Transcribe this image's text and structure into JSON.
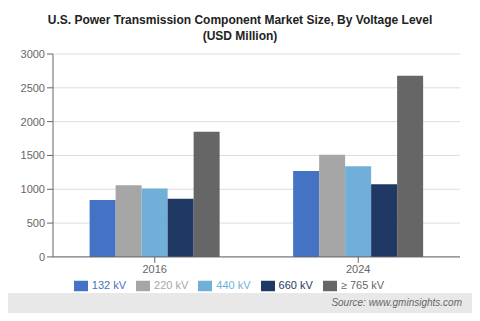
{
  "chart_data": {
    "type": "bar",
    "title": "U.S. Power Transmission Component Market Size, By Voltage Level",
    "subtitle": "(USD Million)",
    "annotations": [
      "Source: www.gminsights.com"
    ],
    "categories": [
      "2016",
      "2024"
    ],
    "series": [
      {
        "name": "132 kV",
        "color": "#4472c4",
        "values": [
          840,
          1270
        ]
      },
      {
        "name": "220 kV",
        "color": "#a6a6a6",
        "values": [
          1060,
          1510
        ]
      },
      {
        "name": "440 kV",
        "color": "#70b0d8",
        "values": [
          1010,
          1340
        ]
      },
      {
        "name": "660 kV",
        "color": "#1f3864",
        "values": [
          860,
          1075
        ]
      },
      {
        "name": "≥ 765 kV",
        "color": "#666666",
        "values": [
          1850,
          2680
        ]
      }
    ],
    "ylim": [
      0,
      3000
    ],
    "yticks": [
      0,
      500,
      1000,
      1500,
      2000,
      2500,
      3000
    ],
    "grid": true,
    "legend": "bottom"
  }
}
